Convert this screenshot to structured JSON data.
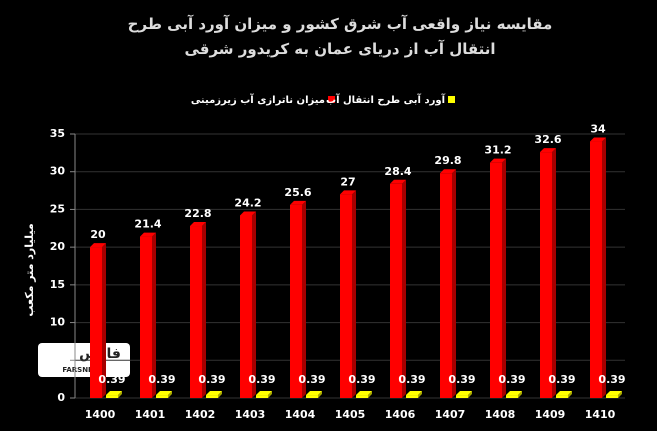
{
  "chart_data": {
    "type": "bar3d",
    "title": "مقایسه نیاز واقعی آب شرق کشور و میزان آورد آبی طرح انتقال آب از دریای عمان به کریدور شرقی",
    "y_label": "میلیارد متر مکعب",
    "categories": [
      "1400",
      "1401",
      "1402",
      "1403",
      "1404",
      "1405",
      "1406",
      "1407",
      "1408",
      "1409",
      "1410"
    ],
    "series": [
      {
        "name": "میزان ناترازی آب زیرزمینی",
        "color": "#ff0000",
        "values": [
          20,
          21.4,
          22.8,
          24.2,
          25.6,
          27,
          28.4,
          29.8,
          31.2,
          32.6,
          34
        ]
      },
      {
        "name": "آورد آبی طرح انتقال آب",
        "color": "#ffff00",
        "values": [
          0.39,
          0.39,
          0.39,
          0.39,
          0.39,
          0.39,
          0.39,
          0.39,
          0.39,
          0.39,
          0.39
        ]
      }
    ],
    "ylim": [
      0,
      35
    ],
    "yticks": [
      0,
      5,
      10,
      15,
      20,
      25,
      30,
      35
    ],
    "grid": true,
    "watermark": {
      "text": "فارس",
      "subtext": "FARSNEWS"
    }
  }
}
